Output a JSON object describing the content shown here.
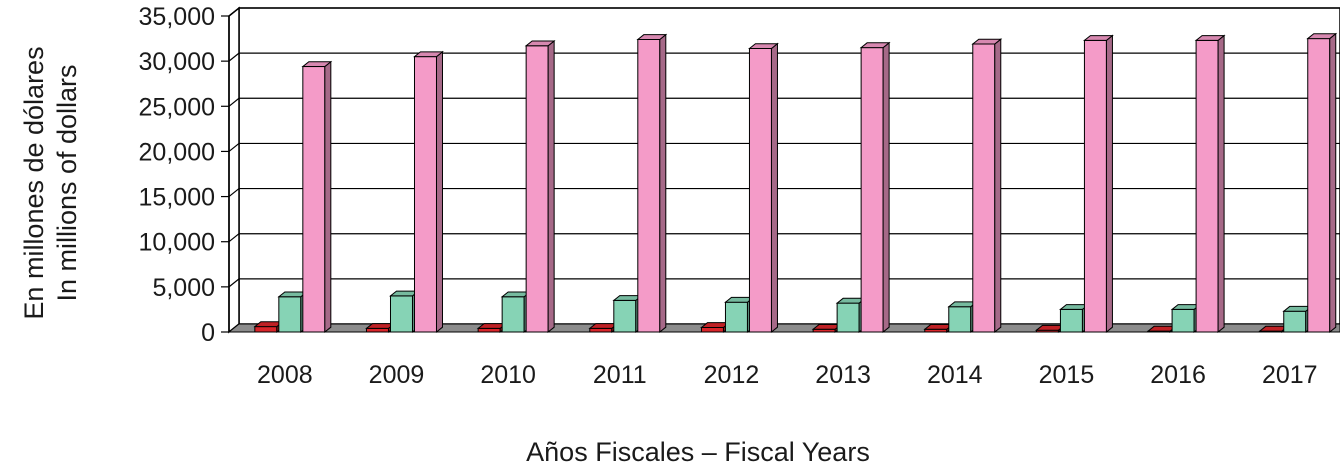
{
  "chart_data": {
    "type": "bar",
    "categories": [
      "2008",
      "2009",
      "2010",
      "2011",
      "2012",
      "2013",
      "2014",
      "2015",
      "2016",
      "2017"
    ],
    "series": [
      {
        "values": [
          600,
          400,
          400,
          400,
          500,
          300,
          300,
          200,
          100,
          100
        ],
        "color": "#d9252a"
      },
      {
        "values": [
          3900,
          4000,
          3900,
          3500,
          3300,
          3200,
          2800,
          2500,
          2500,
          2300
        ],
        "color": "#86d3b5"
      },
      {
        "values": [
          29400,
          30500,
          31700,
          32400,
          31400,
          31500,
          31900,
          32300,
          32300,
          32500
        ],
        "color": "#f49bc8"
      }
    ],
    "yticks": [
      "0",
      "5,000",
      "10,000",
      "15,000",
      "20,000",
      "25,000",
      "30,000",
      "35,000"
    ],
    "ylim": [
      0,
      35000
    ],
    "ylabel_line1": "En millones de dólares",
    "ylabel_line2": "In millions of dollars",
    "xlabel": "Años Fiscales – Fiscal Years",
    "grid": true,
    "style": "3d"
  }
}
